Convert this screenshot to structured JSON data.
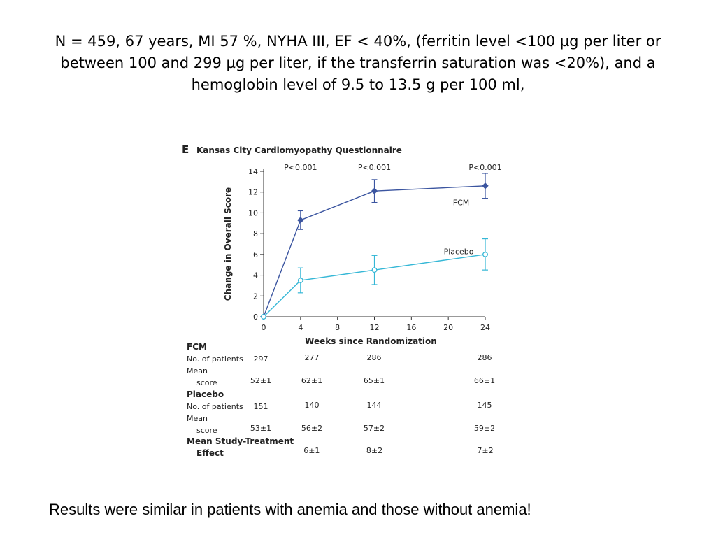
{
  "slide": {
    "title": "N = 459, 67 years, MI 57 %, NYHA III, EF < 40%, (ferritin level <100 µg per liter or between 100 and 299 µg per liter, if the transferrin saturation was <20%), and a hemoglobin level of 9.5 to 13.5 g per 100 ml,",
    "footer": "Results were similar in patients with anemia and those without anemia!"
  },
  "chart_data": {
    "type": "line",
    "panel_letter": "E",
    "title": "Kansas City Cardiomyopathy Questionnaire",
    "xlabel": "Weeks since Randomization",
    "ylabel": "Change in Overall Score",
    "xlim": [
      0,
      24
    ],
    "ylim": [
      0,
      14
    ],
    "xticks": [
      0,
      4,
      8,
      12,
      16,
      20,
      24
    ],
    "yticks": [
      0,
      2,
      4,
      6,
      8,
      10,
      12,
      14
    ],
    "p_values": [
      {
        "x": 4,
        "label": "P<0.001"
      },
      {
        "x": 12,
        "label": "P<0.001"
      },
      {
        "x": 24,
        "label": "P<0.001"
      }
    ],
    "series": [
      {
        "name": "FCM",
        "color": "#3b55a0",
        "marker": "filled-diamond",
        "x": [
          0,
          4,
          12,
          24
        ],
        "y": [
          0,
          9.3,
          12.1,
          12.6
        ],
        "err": [
          0,
          0.9,
          1.1,
          1.2
        ]
      },
      {
        "name": "Placebo",
        "color": "#35b7d6",
        "marker": "open-circle",
        "x": [
          0,
          4,
          12,
          24
        ],
        "y": [
          0,
          3.5,
          4.5,
          6.0
        ],
        "err": [
          0,
          1.2,
          1.4,
          1.5
        ]
      }
    ],
    "table": {
      "groups": [
        {
          "header": "FCM",
          "rows": [
            {
              "label": [
                "No. of patients"
              ],
              "values": [
                "297",
                "277",
                "286",
                "286"
              ]
            },
            {
              "label": [
                "Mean",
                "score"
              ],
              "values": [
                "52±1",
                "62±1",
                "65±1",
                "66±1"
              ]
            }
          ]
        },
        {
          "header": "Placebo",
          "rows": [
            {
              "label": [
                "No. of patients"
              ],
              "values": [
                "151",
                "140",
                "144",
                "145"
              ]
            },
            {
              "label": [
                "Mean",
                "score"
              ],
              "values": [
                "53±1",
                "56±2",
                "57±2",
                "59±2"
              ]
            }
          ]
        }
      ],
      "effect": {
        "label": [
          "Mean Study-Treatment",
          "Effect"
        ],
        "x": [
          4,
          12,
          24
        ],
        "values": [
          "6±1",
          "8±2",
          "7±2"
        ]
      }
    }
  }
}
